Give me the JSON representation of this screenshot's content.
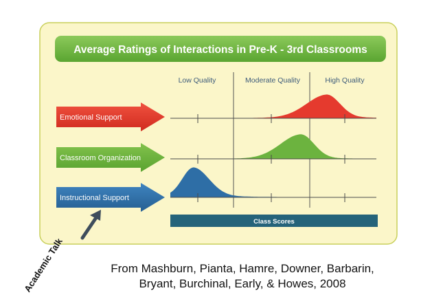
{
  "chart_data": {
    "type": "area",
    "title": "Average Ratings of Interactions in Pre-K - 3rd Classrooms",
    "quality_bands": [
      "Low Quality",
      "Moderate Quality",
      "High Quality"
    ],
    "xlabel": "Class Scores",
    "xlim": [
      1,
      7
    ],
    "band_boundaries": [
      2.66,
      5.66
    ],
    "series": [
      {
        "name": "Emotional Support",
        "peak": 5.5,
        "color": "#e53a2e"
      },
      {
        "name": "Classroom Organization",
        "peak": 4.8,
        "color": "#6cb33f"
      },
      {
        "name": "Instructional Support",
        "peak": 1.9,
        "color": "#2e6ea6"
      }
    ]
  },
  "annotation": {
    "text": "Academic Talk"
  },
  "citation": {
    "line1": "From Mashburn, Pianta, Hamre, Downer, Barbarin,",
    "line2": "Bryant, Burchinal, Early, & Howes, 2008"
  },
  "colors": {
    "panel_bg": "#fbf6c9",
    "panel_border": "#c8cf5a",
    "title_bg": "#74b841",
    "axis_bar": "#25637a"
  }
}
